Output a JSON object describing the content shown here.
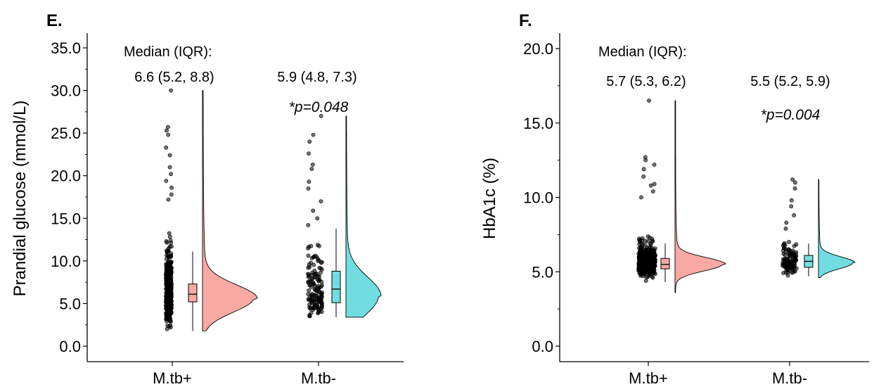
{
  "colors": {
    "positive_group": "#F8A9A4",
    "negative_group": "#72DDE0",
    "points": "#000000",
    "axis": "#000000"
  },
  "chart_data": [
    {
      "type": "raincloud",
      "panel_label": "E.",
      "title": "",
      "xlabel": "",
      "ylabel": "Prandial glucose (mmol/L)",
      "ylim": [
        0,
        35
      ],
      "yticks": [
        0,
        5,
        10,
        15,
        20,
        25,
        30,
        35
      ],
      "ytick_labels": [
        "0.0",
        "5.0",
        "10.0",
        "15.0",
        "20.0",
        "25.0",
        "30.0",
        "35.0"
      ],
      "categories": [
        "M.tb+",
        "M.tb-"
      ],
      "grid": false,
      "legend": "none",
      "groups": [
        {
          "category": "M.tb+",
          "color": "#F8A9A4",
          "median": 6.6,
          "q1": 5.2,
          "q3": 8.8,
          "box_median": 6.1,
          "box_q1": 5.2,
          "box_q3": 7.3,
          "whisker_low": 1.8,
          "whisker_high": 11.1,
          "min": 1.8,
          "max": 30.0,
          "n_points": 520,
          "dense_low": 2.0,
          "dense_high": 16.0,
          "dense_center": 6.1,
          "outliers": [
            17.2,
            17.8,
            18.6,
            19.4,
            20.2,
            21.0,
            22.4,
            23.3,
            24.8,
            25.3,
            25.7,
            30.0
          ],
          "density_peak": 5.6,
          "density_spread": 1.6,
          "annotation": "6.6 (5.2, 8.8)"
        },
        {
          "category": "M.tb-",
          "color": "#72DDE0",
          "median": 5.9,
          "q1": 4.8,
          "q3": 7.3,
          "box_median": 6.7,
          "box_q1": 5.1,
          "box_q3": 8.8,
          "whisker_low": 3.4,
          "whisker_high": 13.8,
          "min": 3.4,
          "max": 27.0,
          "n_points": 140,
          "dense_low": 3.4,
          "dense_high": 12.0,
          "dense_center": 6.3,
          "outliers": [
            14.2,
            15.0,
            15.9,
            17.0,
            18.5,
            19.3,
            20.8,
            21.3,
            22.6,
            24.0,
            24.8,
            27.0
          ],
          "density_peak": 5.9,
          "density_spread": 2.2,
          "annotation": "5.9 (4.8, 7.3)"
        }
      ],
      "median_header": "Median (IQR):",
      "p_value": "*p=0.048"
    },
    {
      "type": "raincloud",
      "panel_label": "F.",
      "title": "",
      "xlabel": "",
      "ylabel": "HbA1c (%)",
      "ylim": [
        0,
        20
      ],
      "yticks": [
        0,
        5,
        10,
        15,
        20
      ],
      "ytick_labels": [
        "0.0",
        "5.0",
        "10.0",
        "15.0",
        "20.0"
      ],
      "categories": [
        "M.tb+",
        "M.tb-"
      ],
      "grid": false,
      "legend": "none",
      "groups": [
        {
          "category": "M.tb+",
          "color": "#F8A9A4",
          "median": 5.7,
          "q1": 5.3,
          "q3": 6.2,
          "box_median": 5.5,
          "box_q1": 5.2,
          "box_q3": 5.9,
          "whisker_low": 4.3,
          "whisker_high": 6.9,
          "min": 3.6,
          "max": 16.5,
          "n_points": 480,
          "dense_low": 3.8,
          "dense_high": 9.5,
          "dense_center": 5.6,
          "outliers": [
            10.0,
            10.4,
            10.8,
            10.9,
            11.4,
            11.9,
            12.2,
            12.5,
            12.7,
            16.5
          ],
          "density_peak": 5.5,
          "density_spread": 0.45,
          "annotation": "5.7 (5.3, 6.2)"
        },
        {
          "category": "M.tb-",
          "color": "#72DDE0",
          "median": 5.5,
          "q1": 5.2,
          "q3": 5.9,
          "box_median": 5.7,
          "box_q1": 5.3,
          "box_q3": 6.1,
          "whisker_low": 4.7,
          "whisker_high": 6.9,
          "min": 4.6,
          "max": 11.2,
          "n_points": 130,
          "dense_low": 4.6,
          "dense_high": 7.5,
          "dense_center": 5.6,
          "outliers": [
            7.9,
            8.3,
            8.8,
            9.4,
            9.8,
            10.6,
            11.0,
            11.2
          ],
          "density_peak": 5.6,
          "density_spread": 0.4,
          "annotation": "5.5 (5.2, 5.9)"
        }
      ],
      "median_header": "Median (IQR):",
      "p_value": "*p=0.004"
    }
  ]
}
